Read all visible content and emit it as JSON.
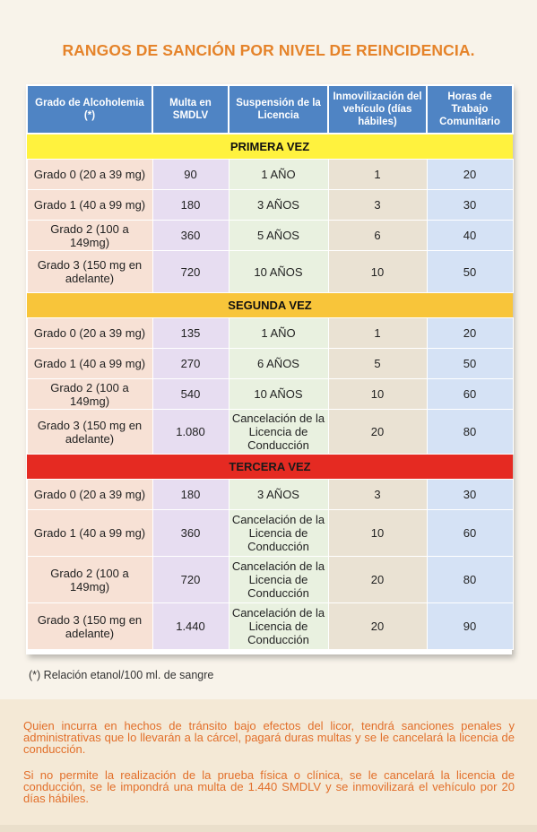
{
  "title": "RANGOS DE SANCIÓN POR NIVEL DE REINCIDENCIA.",
  "headers": [
    "Grado de Alcoholemia (*)",
    "Multa en SMDLV",
    "Suspensión de la Licencia",
    "Inmovilización del vehículo (días hábiles)",
    "Horas de Trabajo Comunitario"
  ],
  "sections": [
    {
      "label": "PRIMERA VEZ",
      "color": "#fff23e",
      "rows": [
        {
          "grado": "Grado 0 (20 a 39 mg)",
          "multa": "90",
          "suspension": "1 AÑO",
          "inmovilizacion": "1",
          "horas": "20"
        },
        {
          "grado": "Grado 1 (40 a 99 mg)",
          "multa": "180",
          "suspension": "3 AÑOS",
          "inmovilizacion": "3",
          "horas": "30"
        },
        {
          "grado": "Grado 2 (100 a 149mg)",
          "multa": "360",
          "suspension": "5 AÑOS",
          "inmovilizacion": "6",
          "horas": "40"
        },
        {
          "grado": "Grado 3 (150 mg en adelante)",
          "multa": "720",
          "suspension": "10 AÑOS",
          "inmovilizacion": "10",
          "horas": "50"
        }
      ]
    },
    {
      "label": "SEGUNDA VEZ",
      "color": "#f8c53a",
      "rows": [
        {
          "grado": "Grado 0 (20 a 39 mg)",
          "multa": "135",
          "suspension": "1 AÑO",
          "inmovilizacion": "1",
          "horas": "20"
        },
        {
          "grado": "Grado 1 (40 a 99 mg)",
          "multa": "270",
          "suspension": "6 AÑOS",
          "inmovilizacion": "5",
          "horas": "50"
        },
        {
          "grado": "Grado 2 (100 a 149mg)",
          "multa": "540",
          "suspension": "10 AÑOS",
          "inmovilizacion": "10",
          "horas": "60"
        },
        {
          "grado": "Grado 3 (150 mg en adelante)",
          "multa": "1.080",
          "suspension": "Cancelación de la Licencia de Conducción",
          "inmovilizacion": "20",
          "horas": "80"
        }
      ]
    },
    {
      "label": "TERCERA VEZ",
      "color": "#e52a22",
      "rows": [
        {
          "grado": "Grado 0 (20 a 39 mg)",
          "multa": "180",
          "suspension": "3 AÑOS",
          "inmovilizacion": "3",
          "horas": "30"
        },
        {
          "grado": "Grado 1 (40 a 99 mg)",
          "multa": "360",
          "suspension": "Cancelación de la Licencia de Conducción",
          "inmovilizacion": "10",
          "horas": "60"
        },
        {
          "grado": "Grado 2 (100 a 149mg)",
          "multa": "720",
          "suspension": "Cancelación de la Licencia de Conducción",
          "inmovilizacion": "20",
          "horas": "80"
        },
        {
          "grado": "Grado 3 (150 mg en adelante)",
          "multa": "1.440",
          "suspension": "Cancelación de la Licencia de Conducción",
          "inmovilizacion": "20",
          "horas": "90"
        }
      ]
    }
  ],
  "footnote": "(*) Relación etanol/100 ml. de sangre",
  "paragraphs": [
    "Quien incurra en hechos de tránsito bajo efectos del licor, tendrá sanciones penales y administrativas que lo llevarán a la cárcel, pagará duras multas y se le cancelará la licencia de conducción.",
    "Si no permite la realización de la prueba física o clínica, se le cancelará la licencia de conducción, se le impondrá una multa de 1.440 SMDLV y se inmovilizará el vehículo por 20 días hábiles."
  ],
  "colors": {
    "title": "#e5832a",
    "header": "#4f84c4",
    "paragraph_text": "#e26f2a"
  }
}
